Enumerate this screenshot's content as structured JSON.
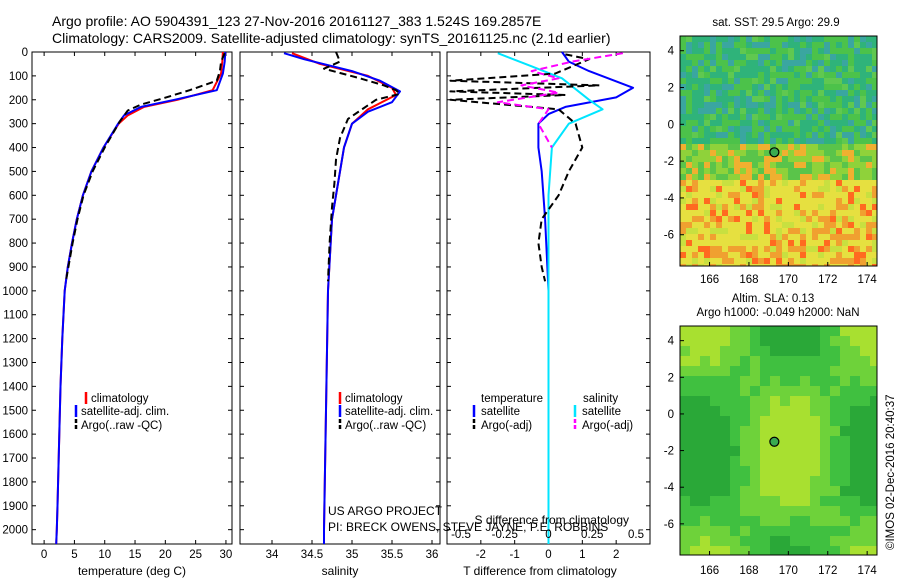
{
  "header": {
    "title_line1": "Argo profile: AO 5904391_123 27-Nov-2016 20161127_383 1.524S 169.2857E",
    "title_line2": "Climatology: CARS2009. Satellite-adjusted climatology: synTS_20161125.nc (2.1d earlier)"
  },
  "footer": {
    "project_line1": "US ARGO PROJECT",
    "project_line2": "PI: BRECK OWENS, STEVE JAYNE, P.E. ROBBINS",
    "imos_stamp": "©IMOS 02-Dec-2016 20:40:37"
  },
  "maps": {
    "sst_title": "sat. SST: 29.5 Argo: 29.9",
    "sla_title_line1": "Altim. SLA: 0.13",
    "sla_title_line2": "Argo h1000: -0.049 h2000: NaN",
    "lon_ticks": [
      166,
      168,
      170,
      172,
      174
    ],
    "lat_ticks": [
      4,
      2,
      0,
      -2,
      -4,
      -6
    ],
    "lon_range": [
      164.5,
      174.5
    ],
    "lat_range": [
      -7.7,
      4.8
    ],
    "argo_lon": 169.29,
    "argo_lat": -1.52
  },
  "colors": {
    "climatology": "#ff0000",
    "satellite": "#0000ff",
    "argo": "#000000",
    "salinity_satellite": "#00e5ff",
    "salinity_argo": "#ff00ff"
  },
  "chart_data": [
    {
      "type": "line",
      "name": "temperature-panel",
      "xlabel": "temperature (deg C)",
      "ylabel": "",
      "xlim": [
        -2,
        31
      ],
      "ylim": [
        2060,
        0
      ],
      "xticks": [
        0,
        5,
        10,
        15,
        20,
        25,
        30
      ],
      "yticks": [
        0,
        100,
        200,
        300,
        400,
        500,
        600,
        700,
        800,
        900,
        1000,
        1100,
        1200,
        1300,
        1400,
        1500,
        1600,
        1700,
        1800,
        1900,
        2000
      ],
      "legend": [
        "climatology",
        "satellite-adj. clim.",
        "Argo(..raw -QC)"
      ],
      "series": [
        {
          "name": "climatology",
          "color": "#ff0000",
          "dash": "",
          "x": [
            29.5,
            29.4,
            29.2,
            27.8,
            22.0,
            16.5,
            13.8,
            12.3,
            9.8,
            7.8,
            6.4,
            5.4,
            4.6,
            3.9,
            3.4,
            3.0,
            2.7,
            2.5,
            2.3,
            2.2,
            2.1,
            2.0
          ],
          "y": [
            0,
            40,
            90,
            160,
            200,
            230,
            265,
            300,
            400,
            500,
            600,
            700,
            800,
            900,
            1000,
            1200,
            1400,
            1600,
            1800,
            1900,
            2000,
            2060
          ]
        },
        {
          "name": "satellite",
          "color": "#0000ff",
          "dash": "",
          "x": [
            29.9,
            29.8,
            29.5,
            28.5,
            21.5,
            16.0,
            13.2,
            12.2,
            9.8,
            7.8,
            6.4,
            5.4,
            4.6,
            3.9,
            3.4,
            3.0,
            2.7,
            2.5,
            2.3,
            2.2,
            2.1,
            2.0
          ],
          "y": [
            0,
            40,
            90,
            160,
            200,
            230,
            265,
            300,
            400,
            500,
            600,
            700,
            800,
            900,
            1000,
            1200,
            1400,
            1600,
            1800,
            1900,
            2000,
            2060
          ]
        },
        {
          "name": "argo",
          "color": "#000000",
          "dash": "7,4",
          "x": [
            29.8,
            29.2,
            29.0,
            28.5,
            24.0,
            19.5,
            16.0,
            13.8,
            12.5,
            10.0,
            8.0,
            6.5,
            5.5,
            4.7,
            4.0,
            3.6
          ],
          "y": [
            5,
            40,
            80,
            120,
            160,
            195,
            220,
            245,
            290,
            400,
            500,
            600,
            700,
            800,
            900,
            960
          ]
        }
      ]
    },
    {
      "type": "line",
      "name": "salinity-panel",
      "xlabel": "salinity",
      "ylabel": "",
      "xlim": [
        33.6,
        36.1
      ],
      "ylim": [
        2060,
        0
      ],
      "xticks": [
        34,
        34.5,
        35,
        35.5,
        36
      ],
      "legend": [
        "climatology",
        "satellite-adj. clim.",
        "Argo(..raw -QC)"
      ],
      "series": [
        {
          "name": "climatology",
          "color": "#ff0000",
          "dash": "",
          "x": [
            34.25,
            34.6,
            35.2,
            35.5,
            35.55,
            35.2,
            35.0,
            34.9,
            34.85,
            34.8,
            34.75,
            34.7,
            34.68,
            34.66,
            34.65,
            34.65
          ],
          "y": [
            5,
            50,
            100,
            150,
            180,
            240,
            300,
            400,
            500,
            600,
            700,
            1000,
            1400,
            1800,
            2000,
            2060
          ]
        },
        {
          "name": "satellite",
          "color": "#0000ff",
          "dash": "",
          "x": [
            34.15,
            34.4,
            35.0,
            35.35,
            35.6,
            35.5,
            35.2,
            35.0,
            34.9,
            34.85,
            34.8,
            34.75,
            34.7,
            34.68,
            34.66,
            34.65,
            34.65
          ],
          "y": [
            5,
            30,
            80,
            120,
            165,
            210,
            250,
            300,
            400,
            500,
            600,
            700,
            1000,
            1400,
            1800,
            2000,
            2060
          ]
        },
        {
          "name": "argo",
          "color": "#000000",
          "dash": "7,4",
          "x": [
            34.8,
            34.85,
            34.65,
            35.1,
            35.4,
            35.55,
            35.6,
            35.3,
            34.95,
            34.85,
            34.8,
            34.78,
            34.75,
            34.72,
            34.7
          ],
          "y": [
            0,
            40,
            70,
            110,
            140,
            160,
            175,
            200,
            280,
            360,
            450,
            550,
            650,
            800,
            960
          ]
        }
      ]
    },
    {
      "type": "line",
      "name": "difference-panel",
      "xlabel": "T difference from climatology",
      "xlabel_top": "S difference from climatology",
      "xlim": [
        -3,
        3
      ],
      "ylim": [
        2060,
        0
      ],
      "xticks": [
        -2,
        -1,
        0,
        1,
        2
      ],
      "xticks_salinity": [
        "-0.5",
        "-0.25",
        "0",
        "0.25",
        "0.5"
      ],
      "legend": {
        "temperature_heading": "temperature",
        "salinity_heading": "salinity",
        "temperature_entries": [
          "satellite",
          "Argo(-adj)"
        ],
        "salinity_entries": [
          "satellite",
          "Argo(-adj)"
        ]
      },
      "series": [
        {
          "name": "T satellite",
          "color": "#0000ff",
          "dash": "",
          "x": [
            0.4,
            0.6,
            1.2,
            2.5,
            2.0,
            0.5,
            0.0,
            -0.3,
            -0.3,
            -0.2,
            -0.1,
            0.0,
            0.0,
            0.0
          ],
          "y": [
            0,
            40,
            80,
            150,
            190,
            230,
            260,
            300,
            400,
            500,
            700,
            1000,
            1500,
            2060
          ]
        },
        {
          "name": "S satellite",
          "color": "#00e5ff",
          "dash": "",
          "x": [
            -1.5,
            -0.5,
            0.4,
            1.2,
            1.6,
            0.6,
            0.1,
            0.0,
            0.0,
            0.0
          ],
          "y": [
            5,
            60,
            110,
            200,
            240,
            300,
            400,
            600,
            1000,
            2060
          ]
        },
        {
          "name": "T argo",
          "color": "#000000",
          "dash": "7,4",
          "x": [
            0.5,
            1.2,
            0.2,
            -2.9,
            1.5,
            -2.9,
            0.5,
            -2.9,
            0.3,
            0.8,
            1.0,
            0.6,
            0.3,
            -0.2,
            -0.3,
            -0.2,
            -0.1
          ],
          "y": [
            10,
            30,
            90,
            120,
            140,
            165,
            180,
            200,
            240,
            300,
            400,
            500,
            600,
            700,
            800,
            900,
            960
          ]
        },
        {
          "name": "S argo",
          "color": "#ff00ff",
          "dash": "7,4",
          "x": [
            2.2,
            0.7,
            -0.5,
            0.3,
            -0.8,
            0.3,
            -1.5,
            0.0,
            -0.3,
            0.1
          ],
          "y": [
            5,
            40,
            80,
            110,
            140,
            170,
            210,
            240,
            300,
            400
          ]
        }
      ]
    }
  ]
}
